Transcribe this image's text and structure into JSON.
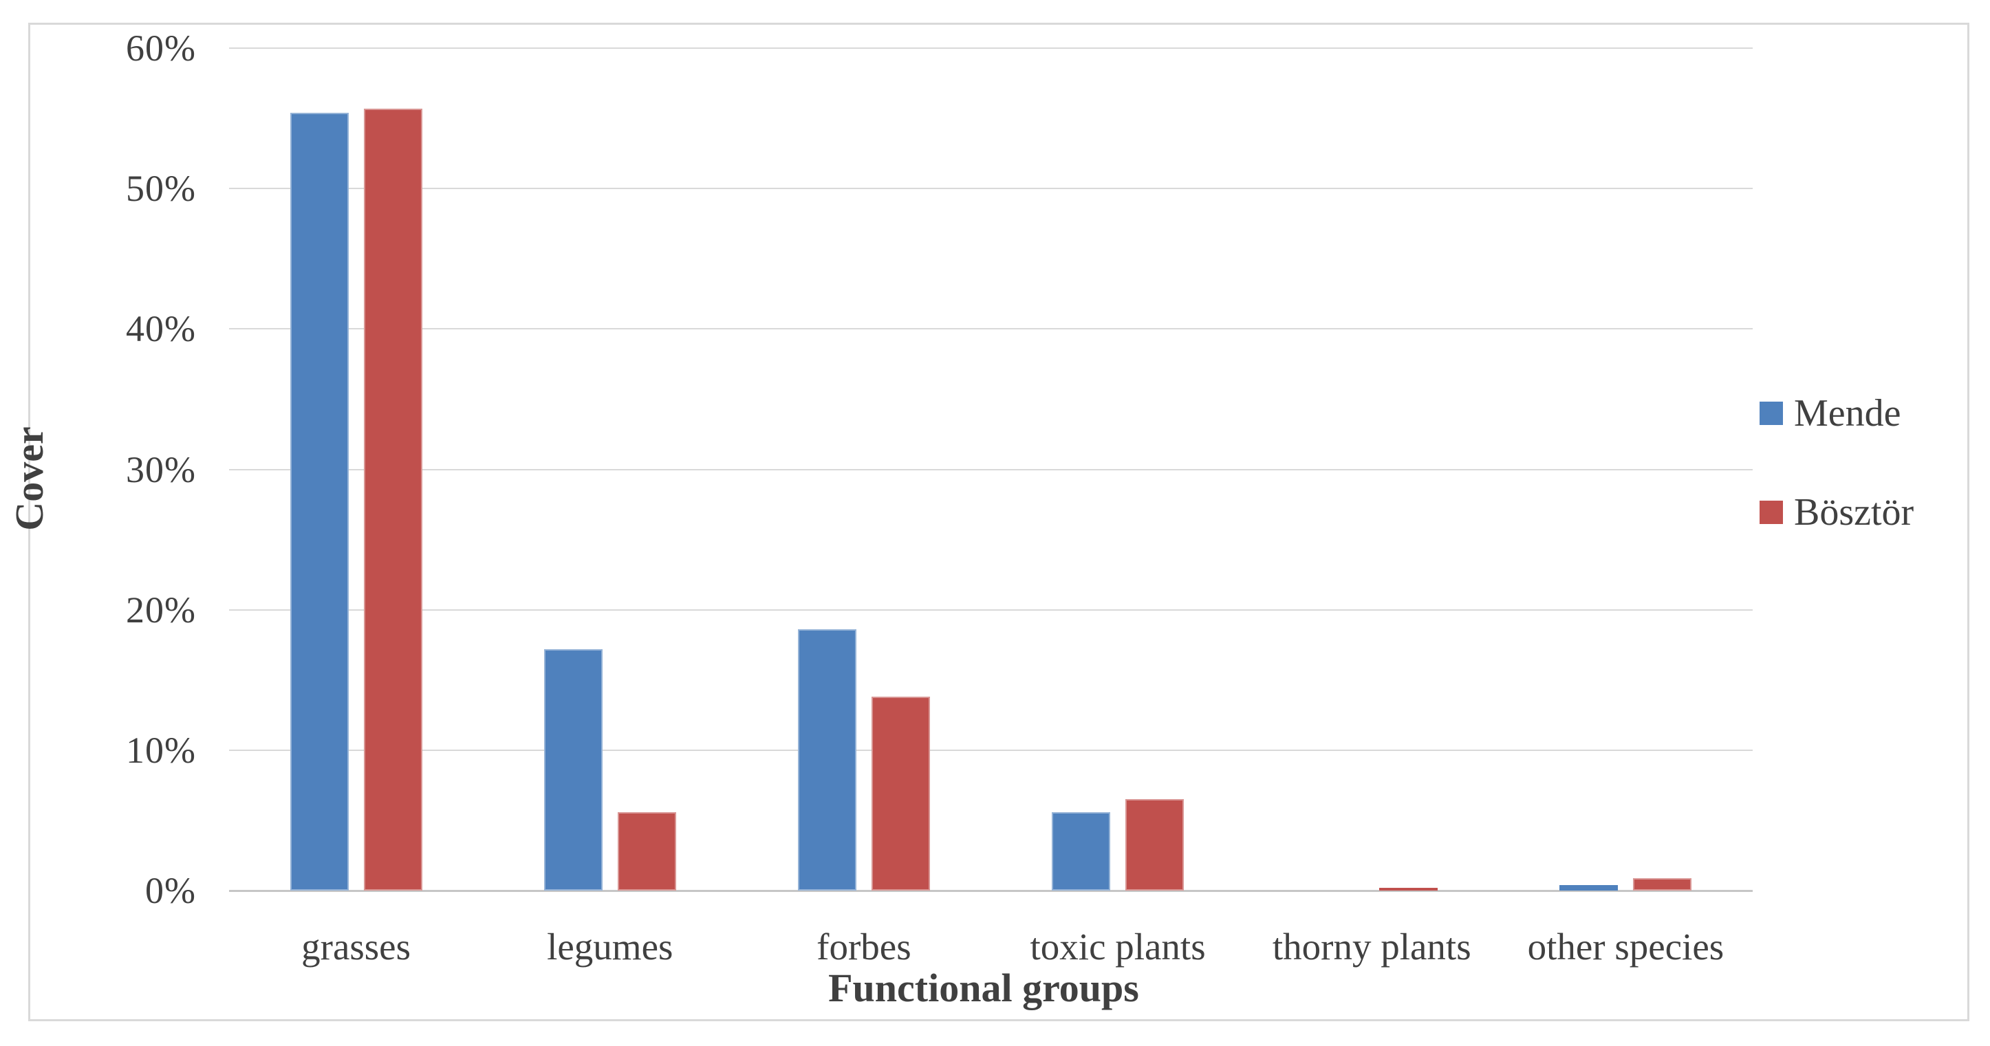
{
  "chart_data": {
    "type": "bar",
    "title": "",
    "xlabel": "Functional groups",
    "ylabel": "Cover",
    "categories": [
      "grasses",
      "legumes",
      "forbes",
      "toxic plants",
      "thorny plants",
      "other species"
    ],
    "series": [
      {
        "name": "Mende",
        "color": "#4F81BD",
        "edge_color": "#95B3D7",
        "values": [
          55.4,
          17.2,
          18.6,
          5.6,
          0.0,
          0.4
        ]
      },
      {
        "name": "Bösztör",
        "color": "#C0504D",
        "edge_color": "#D99694",
        "values": [
          55.7,
          5.6,
          13.8,
          6.5,
          0.2,
          0.9
        ]
      }
    ],
    "ylim": [
      0,
      60
    ],
    "ytick_step": 10,
    "ytick_labels": [
      "0%",
      "10%",
      "20%",
      "30%",
      "40%",
      "50%",
      "60%"
    ],
    "grid": true,
    "gridline_color": "#d9d9d9",
    "axis_line_color": "#c6c6c6",
    "text_color": "#404040",
    "legend_position": "right",
    "legend_entries": [
      "Mende",
      "Bösztör"
    ]
  }
}
